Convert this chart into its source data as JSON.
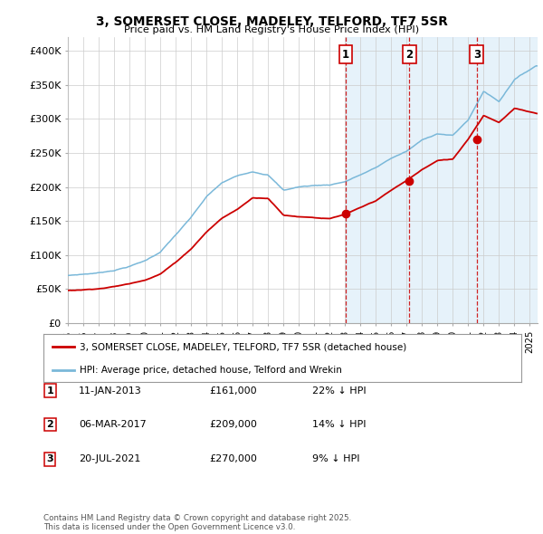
{
  "title_line1": "3, SOMERSET CLOSE, MADELEY, TELFORD, TF7 5SR",
  "title_line2": "Price paid vs. HM Land Registry's House Price Index (HPI)",
  "hpi_color": "#7ab8d9",
  "hpi_fill_color": "#d6eaf8",
  "price_color": "#cc0000",
  "vline_color": "#cc0000",
  "purchase_dates": [
    2013.036,
    2017.178,
    2021.554
  ],
  "purchase_prices": [
    161000,
    209000,
    270000
  ],
  "purchase_labels": [
    "1",
    "2",
    "3"
  ],
  "xlim_start": 1995.0,
  "xlim_end": 2025.5,
  "ylim": [
    0,
    420000
  ],
  "yticks": [
    0,
    50000,
    100000,
    150000,
    200000,
    250000,
    300000,
    350000,
    400000
  ],
  "ytick_labels": [
    "£0",
    "£50K",
    "£100K",
    "£150K",
    "£200K",
    "£250K",
    "£300K",
    "£350K",
    "£400K"
  ],
  "legend_entries": [
    "3, SOMERSET CLOSE, MADELEY, TELFORD, TF7 5SR (detached house)",
    "HPI: Average price, detached house, Telford and Wrekin"
  ],
  "table_rows": [
    [
      "1",
      "11-JAN-2013",
      "£161,000",
      "22% ↓ HPI"
    ],
    [
      "2",
      "06-MAR-2017",
      "£209,000",
      "14% ↓ HPI"
    ],
    [
      "3",
      "20-JUL-2021",
      "£270,000",
      "9% ↓ HPI"
    ]
  ],
  "footnote": "Contains HM Land Registry data © Crown copyright and database right 2025.\nThis data is licensed under the Open Government Licence v3.0.",
  "hpi_key_years": [
    1995,
    1996,
    1997,
    1998,
    1999,
    2000,
    2001,
    2002,
    2003,
    2004,
    2005,
    2006,
    2007,
    2008,
    2009,
    2010,
    2011,
    2012,
    2013,
    2014,
    2015,
    2016,
    2017,
    2018,
    2019,
    2020,
    2021,
    2022,
    2023,
    2024,
    2025.4
  ],
  "hpi_key_vals": [
    70000,
    72000,
    74000,
    78000,
    84000,
    92000,
    105000,
    130000,
    155000,
    185000,
    205000,
    215000,
    222000,
    218000,
    195000,
    200000,
    202000,
    203000,
    208000,
    218000,
    228000,
    242000,
    252000,
    268000,
    278000,
    275000,
    298000,
    340000,
    325000,
    358000,
    378000
  ],
  "price_key_years": [
    1995,
    1996,
    1997,
    1998,
    1999,
    2000,
    2001,
    2002,
    2003,
    2004,
    2005,
    2006,
    2007,
    2008,
    2009,
    2010,
    2011,
    2012,
    2013,
    2014,
    2015,
    2016,
    2017,
    2018,
    2019,
    2020,
    2021,
    2022,
    2023,
    2024,
    2025.4
  ],
  "price_key_vals": [
    48000,
    49000,
    51000,
    54000,
    58000,
    64000,
    73000,
    90000,
    110000,
    135000,
    155000,
    168000,
    185000,
    185000,
    160000,
    158000,
    157000,
    155000,
    161000,
    170000,
    180000,
    195000,
    209000,
    225000,
    238000,
    240000,
    270000,
    305000,
    295000,
    315000,
    308000
  ],
  "hpi_noise_scale": 1200,
  "price_noise_scale": 800
}
